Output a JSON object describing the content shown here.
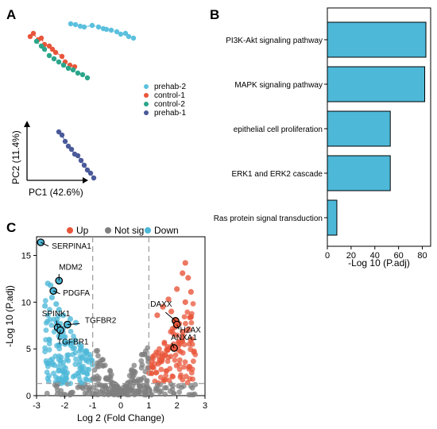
{
  "panels": {
    "a": {
      "letter": "A"
    },
    "b": {
      "letter": "B"
    },
    "c": {
      "letter": "C"
    }
  },
  "chart_data": [
    {
      "type": "scatter",
      "panel": "A",
      "xlabel": "PC1 (42.6%)",
      "ylabel": "PC2 (11.4%)",
      "legend_position": "right",
      "series": [
        {
          "name": "prehab-2",
          "color": "#5bc0de",
          "x": [
            55,
            61,
            67,
            72,
            82,
            90,
            96,
            100,
            106,
            113,
            118,
            124,
            128,
            134
          ],
          "y": [
            12,
            13,
            15,
            16,
            14,
            16,
            18,
            19,
            20,
            22,
            25,
            24,
            28,
            30
          ]
        },
        {
          "name": "control-1",
          "color": "#e8553a",
          "x": [
            4,
            8,
            14,
            18,
            22,
            28,
            32,
            36,
            44,
            48,
            54,
            60
          ],
          "y": [
            28,
            24,
            32,
            30,
            38,
            40,
            44,
            48,
            53,
            60,
            64,
            66
          ]
        },
        {
          "name": "control-2",
          "color": "#2aa58a",
          "x": [
            12,
            18,
            22,
            28,
            34,
            40,
            46,
            52,
            58,
            64,
            70,
            76
          ],
          "y": [
            34,
            40,
            44,
            52,
            56,
            60,
            64,
            68,
            70,
            74,
            76,
            80
          ]
        },
        {
          "name": "prehab-1",
          "color": "#4a5a99",
          "x": [
            40,
            44,
            48,
            52,
            56,
            60,
            64,
            68,
            72,
            76,
            80,
            84
          ],
          "y": [
            148,
            152,
            160,
            166,
            170,
            176,
            178,
            184,
            190,
            196,
            200,
            206
          ]
        }
      ]
    },
    {
      "type": "bar",
      "panel": "B",
      "orientation": "horizontal",
      "categories": [
        "PI3K-Akt signaling pathway",
        "MAPK signaling pathway",
        "epithelial cell proliferation",
        "ERK1 and ERK2 cascade",
        "Ras protein signal transduction"
      ],
      "values": [
        83,
        82,
        53,
        53,
        8
      ],
      "xlabel": "-Log 10 (P.adj)",
      "xlim": [
        0,
        87
      ],
      "xticks": [
        "0",
        "20",
        "40",
        "60",
        "80"
      ],
      "bar_color": "#4db8d8"
    },
    {
      "type": "scatter",
      "panel": "C",
      "xlabel": "Log 2 (Fold Change)",
      "ylabel": "-Log 10 (P.adj)",
      "xlim": [
        -3,
        3
      ],
      "ylim": [
        0,
        17
      ],
      "xticks": [
        "-3",
        "-2",
        "-1",
        "0",
        "1",
        "2",
        "3"
      ],
      "yticks": [
        "0",
        "5",
        "10",
        "15"
      ],
      "thresholds": {
        "x": [
          -1,
          1
        ],
        "y": 1.3
      },
      "legend": [
        {
          "name": "Up",
          "color": "#e8553a"
        },
        {
          "name": "Not sig",
          "color": "#7f7f7f"
        },
        {
          "name": "Down",
          "color": "#4db8d8"
        }
      ],
      "legend_position": "top",
      "labeled_genes": [
        {
          "gene": "SERPINA1",
          "x": -2.85,
          "y": 16.4
        },
        {
          "gene": "MDM2",
          "x": -2.2,
          "y": 12.3
        },
        {
          "gene": "PDGFA",
          "x": -2.4,
          "y": 11.2
        },
        {
          "gene": "SPINK1",
          "x": -2.25,
          "y": 7.3
        },
        {
          "gene": "TGFBR2",
          "x": -1.9,
          "y": 7.6
        },
        {
          "gene": "TGFBR1",
          "x": -2.15,
          "y": 7.0
        },
        {
          "gene": "DAXX",
          "x": 1.95,
          "y": 8.0
        },
        {
          "gene": "H2AX",
          "x": 2.0,
          "y": 7.6
        },
        {
          "gene": "ANXA1",
          "x": 1.9,
          "y": 5.1
        }
      ]
    }
  ]
}
